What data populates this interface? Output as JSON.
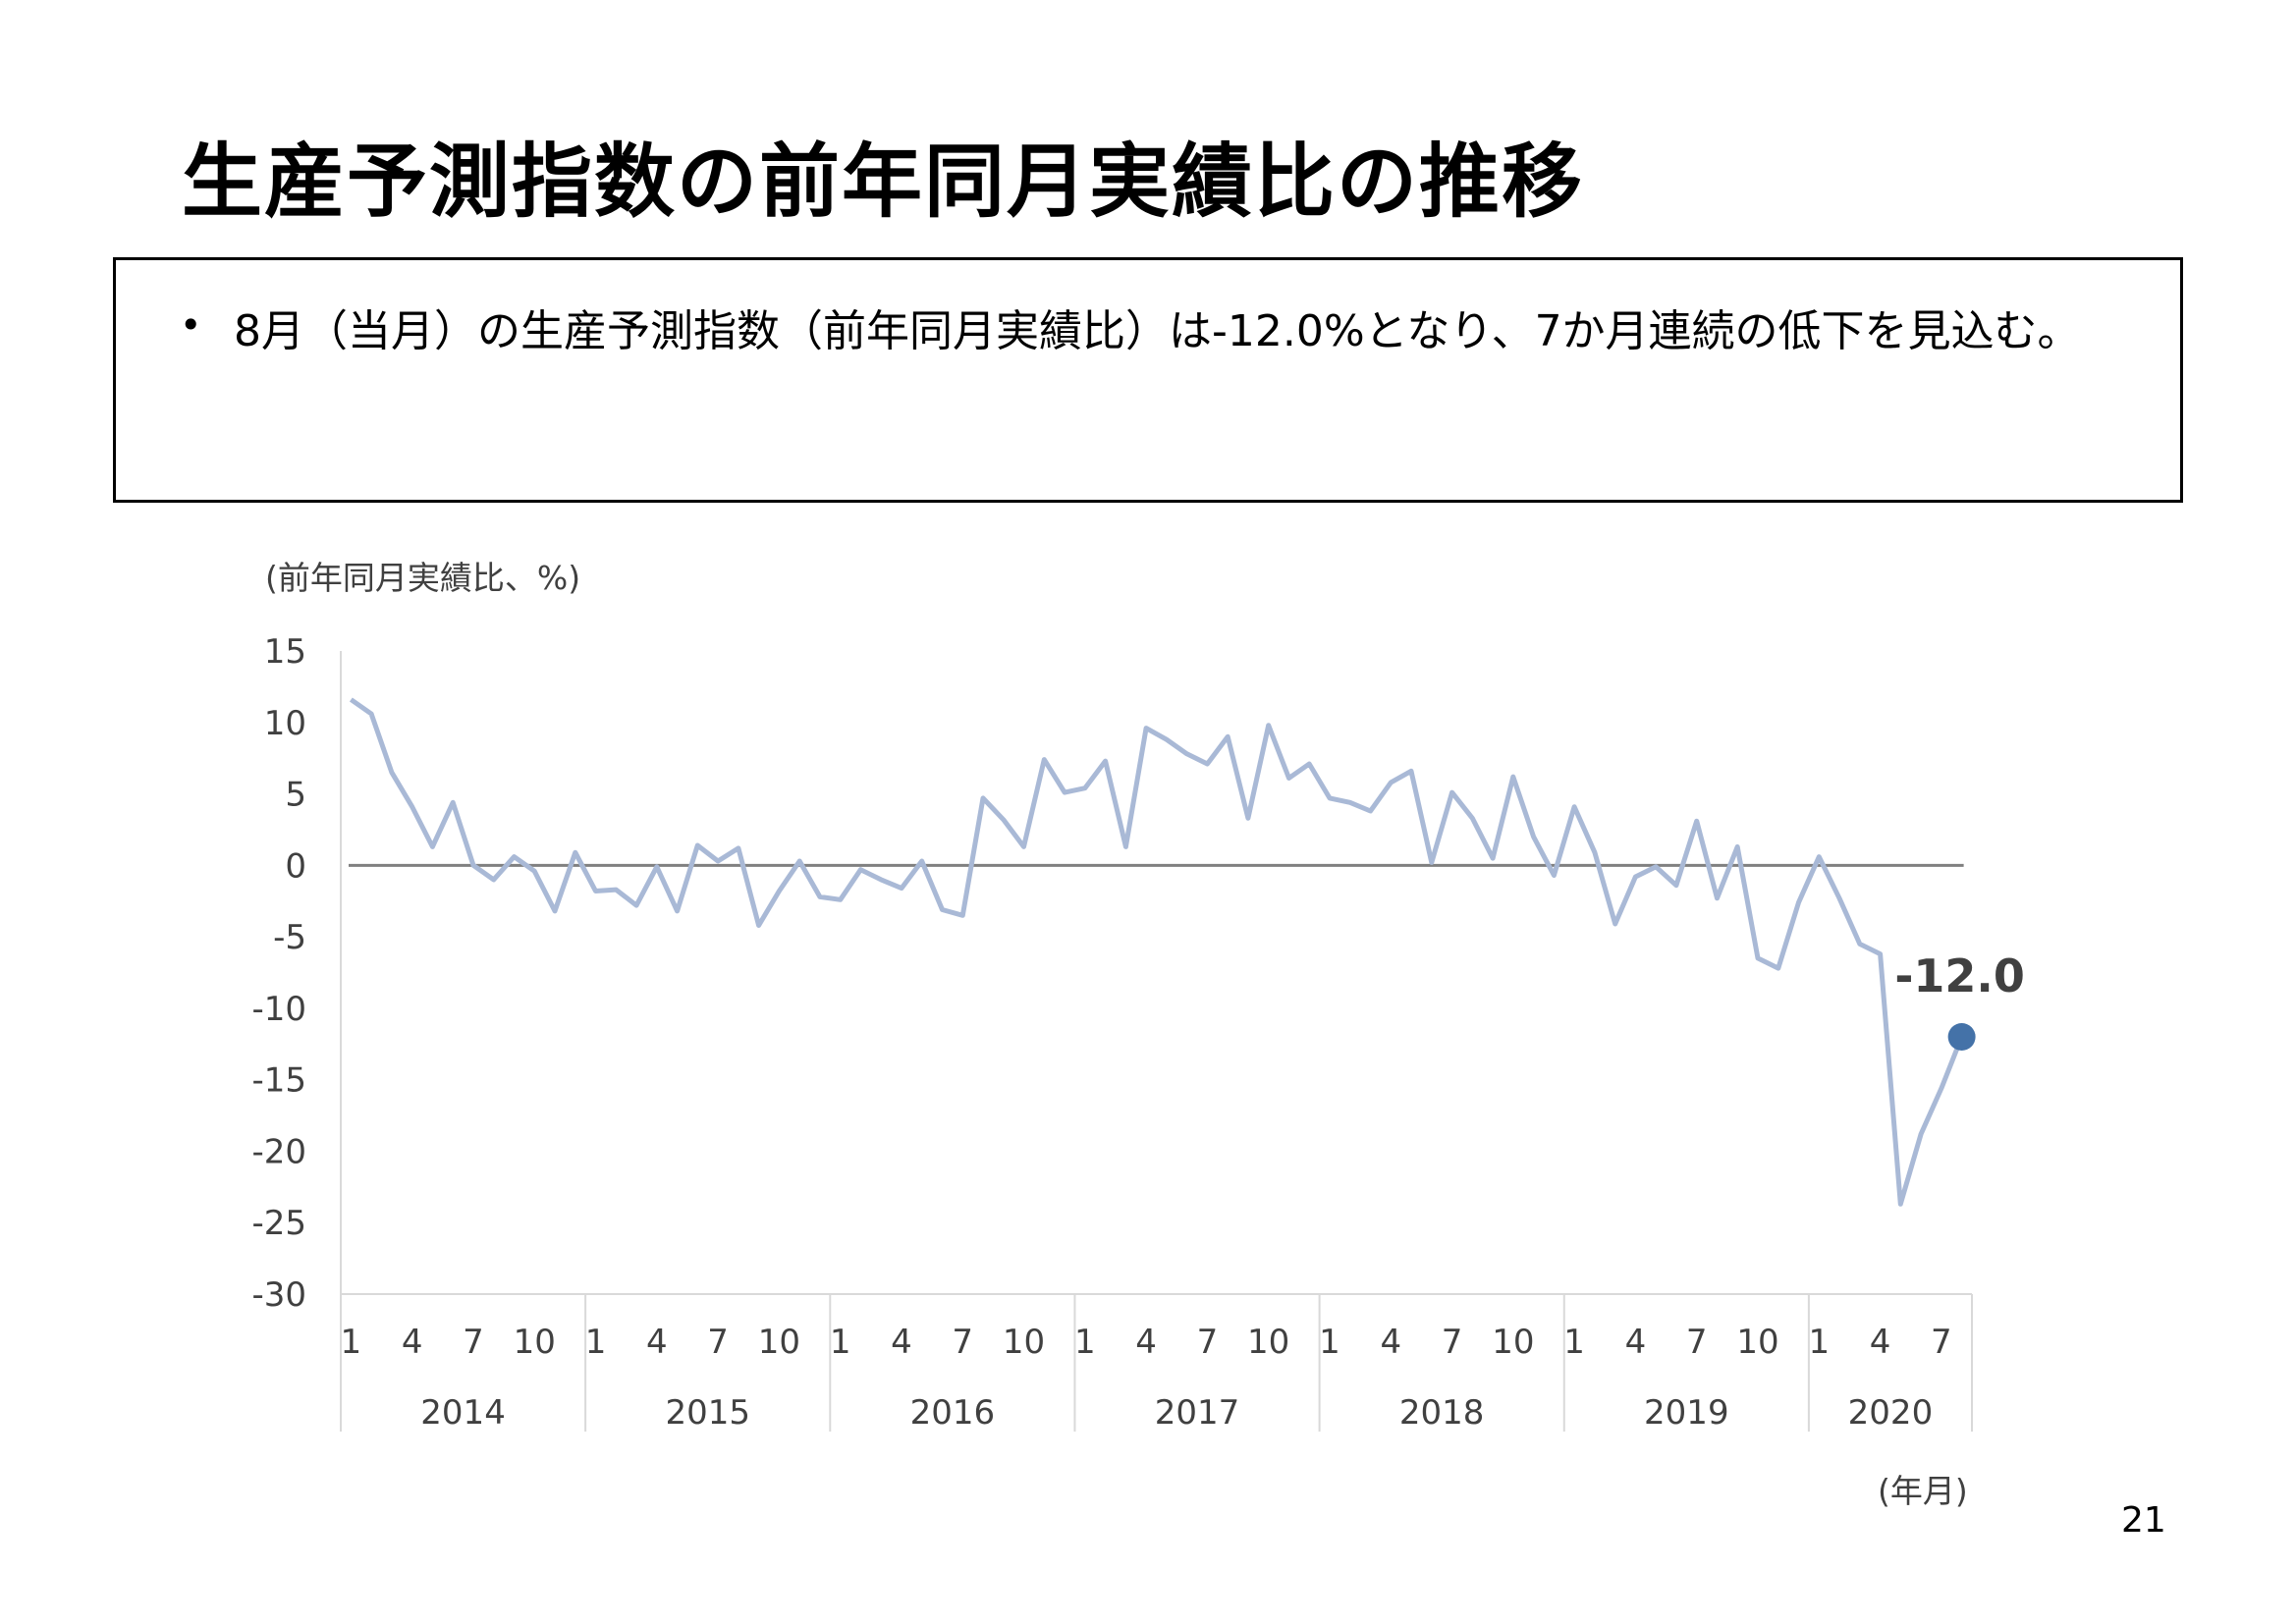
{
  "page": {
    "title": "生産予測指数の前年同月実績比の推移",
    "bullet": "8月（当月）の生産予測指数（前年同月実績比）は-12.0%となり、7か月連続の低下を見込む。",
    "page_number": "21"
  },
  "chart_data": {
    "type": "line",
    "ylabel": "(前年同月実績比、%)",
    "xlabel": "(年月)",
    "ylim": [
      -30,
      15
    ],
    "y_ticks": [
      "15",
      "10",
      "5",
      "0",
      "-5",
      "-10",
      "-15",
      "-20",
      "-25",
      "-30"
    ],
    "x_month_ticks": [
      "1",
      "4",
      "7",
      "10"
    ],
    "years": [
      "2014",
      "2015",
      "2016",
      "2017",
      "2018",
      "2019",
      "2020"
    ],
    "months_in_last_year": 8,
    "x_last_year_month_ticks": [
      "1",
      "4",
      "7"
    ],
    "grid": false,
    "reference_line": 0,
    "colors": {
      "line": "#a9b9d6",
      "marker": "#4472a8",
      "axis": "#7f7f7f",
      "zero_line": "#808080"
    },
    "highlight": {
      "label": "-12.0",
      "value": -12.0
    },
    "series": [
      {
        "values": [
          11.6,
          10.6,
          6.5,
          4.1,
          1.3,
          4.4,
          0.0,
          -1.0,
          0.6,
          -0.4,
          -3.2,
          0.9,
          -1.8,
          -1.7,
          -2.8,
          -0.1,
          -3.2,
          1.4,
          0.3,
          1.2,
          -4.2,
          -1.8,
          0.3,
          -2.2,
          -2.4,
          -0.3,
          -1.0,
          -1.6,
          0.3,
          -3.1,
          -3.5,
          4.7,
          3.2,
          1.3,
          7.4,
          5.1,
          5.4,
          7.3,
          1.3,
          9.6,
          8.8,
          7.8,
          7.1,
          9.0,
          3.3,
          9.8,
          6.1,
          7.1,
          4.7,
          4.4,
          3.8,
          5.8,
          6.6,
          0.2,
          5.1,
          3.3,
          0.5,
          6.2,
          2.0,
          -0.7,
          4.1,
          0.9,
          -4.1,
          -0.8,
          -0.1,
          -1.4,
          3.1,
          -2.3,
          1.3,
          -6.5,
          -7.2,
          -2.6,
          0.6,
          -2.3,
          -5.5,
          -6.2,
          -23.7,
          -18.8,
          -15.6,
          -12.0
        ]
      }
    ]
  }
}
